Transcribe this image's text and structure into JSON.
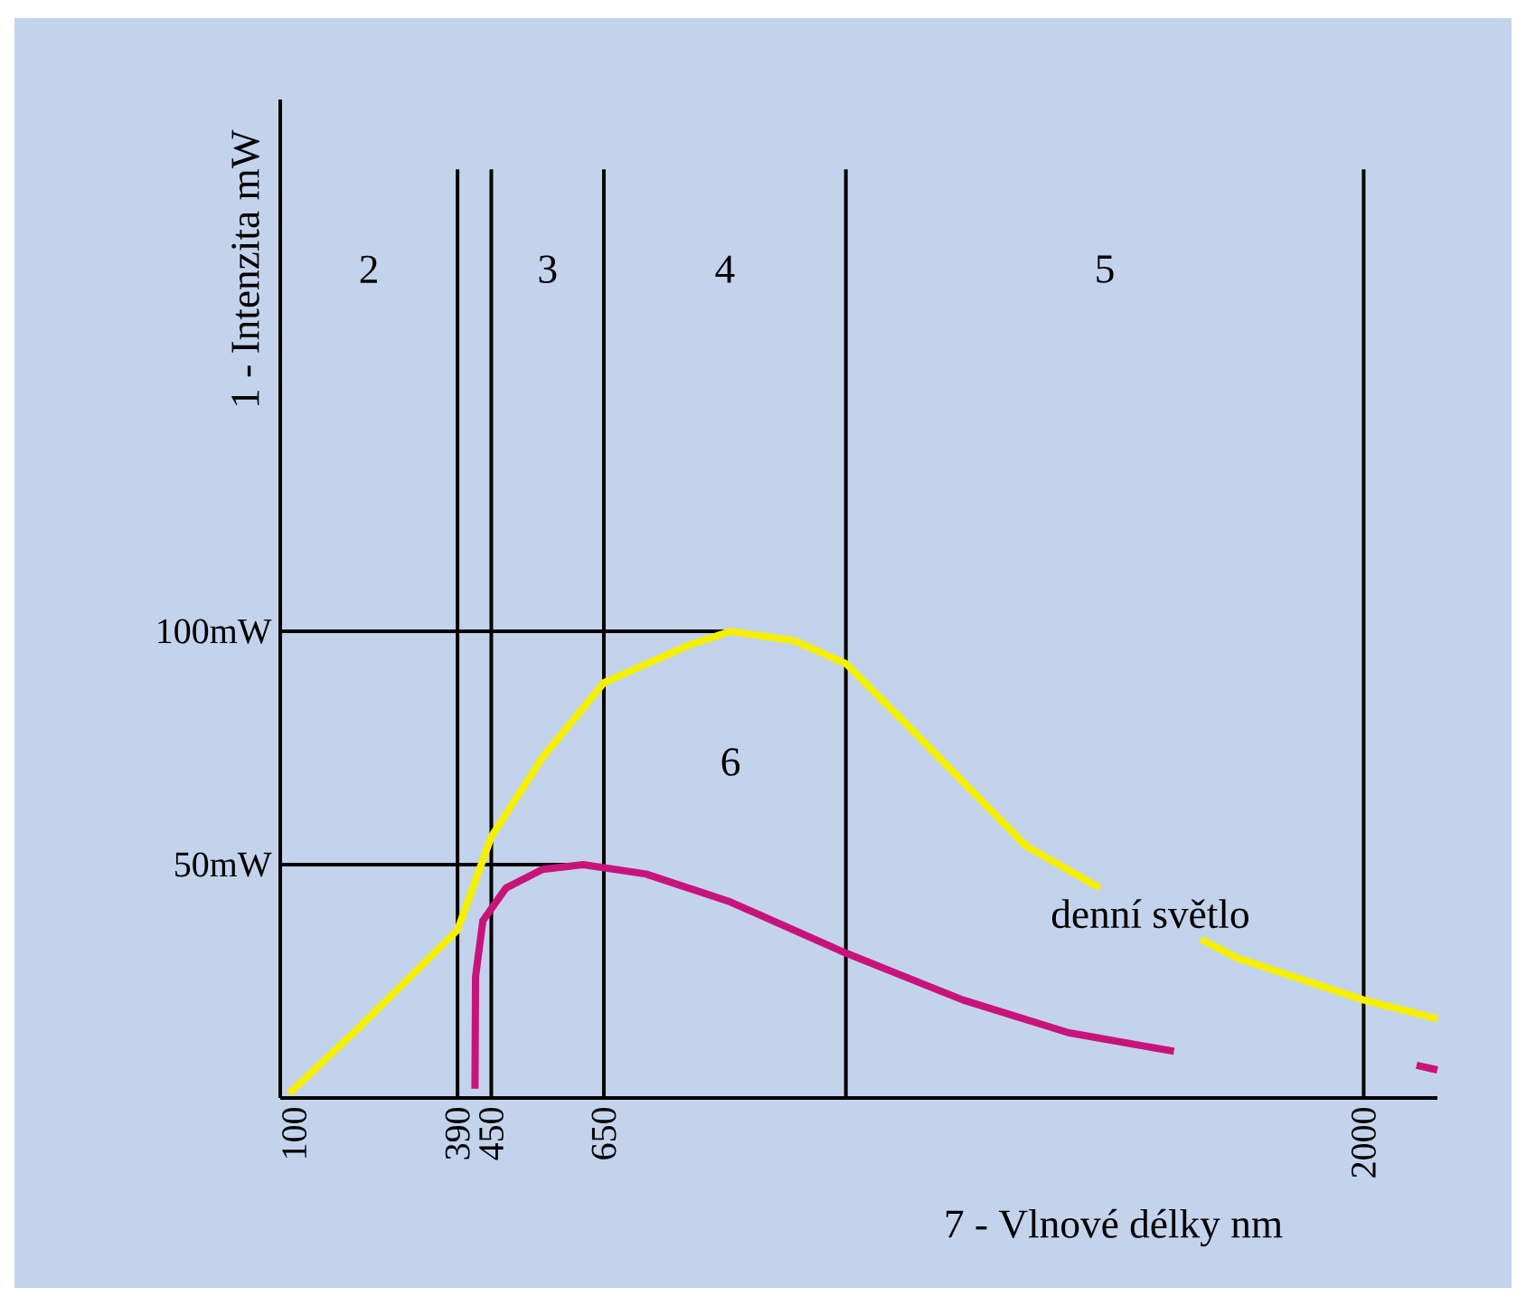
{
  "chart_data": {
    "type": "line",
    "xlabel": "7 - Vlnové délky nm",
    "ylabel": "1 - Intenzita mW",
    "xlim": [
      75,
      2131
    ],
    "ylim": [
      0,
      214
    ],
    "xticks": [
      100,
      390,
      450,
      650,
      2000
    ],
    "yticks": [
      {
        "value": 50,
        "label": "50mW"
      },
      {
        "value": 100,
        "label": "100mW"
      }
    ],
    "series": [
      {
        "name": "denní světlo",
        "color": "#f5f000",
        "x": [
          91,
          214,
          390,
          450,
          541,
          650,
          800,
          875,
          988,
          1081,
          1213,
          1400,
          1531,
          null,
          1711,
          1775,
          2000,
          2131
        ],
        "values": [
          1,
          15,
          36,
          56,
          73,
          89,
          97,
          100,
          98,
          93,
          77,
          54,
          45,
          null,
          34,
          30,
          21,
          17
        ]
      },
      {
        "color": "#c8147a",
        "x": [
          421,
          422,
          435,
          476,
          541,
          613,
          725,
          875,
          1081,
          1288,
          1475,
          1663,
          null,
          2094,
          2131
        ],
        "values": [
          2,
          26,
          38,
          45,
          49,
          50,
          48,
          42,
          31,
          21,
          14,
          10,
          null,
          7,
          6
        ]
      }
    ],
    "ref_lines": [
      {
        "axis": "x",
        "value": 390
      },
      {
        "axis": "x",
        "value": 450
      },
      {
        "axis": "x",
        "value": 650
      },
      {
        "axis": "x",
        "value": 1080
      },
      {
        "axis": "x",
        "value": 2000
      },
      {
        "axis": "y",
        "value": 50
      },
      {
        "axis": "y",
        "value": 100
      }
    ],
    "annotations": [
      "2",
      "3",
      "4",
      "5",
      "6"
    ],
    "grid": false,
    "line_style": "solid"
  }
}
